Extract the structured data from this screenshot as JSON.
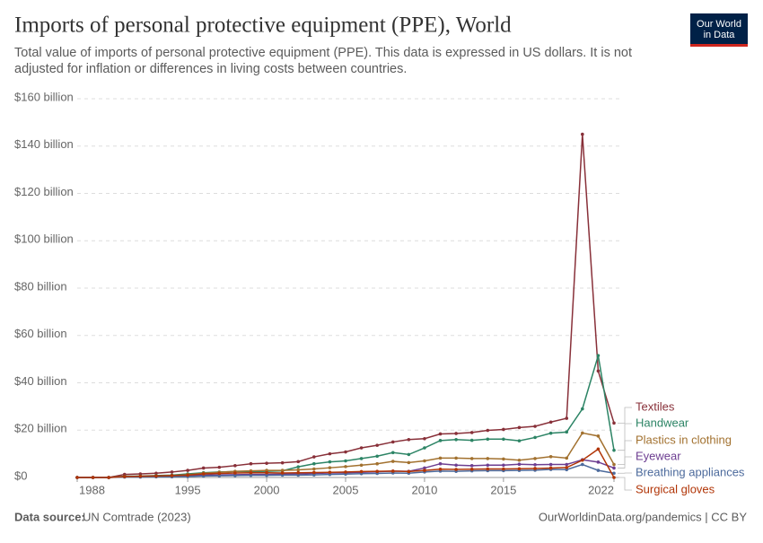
{
  "chart_data": {
    "type": "line",
    "title": "Imports of personal protective equipment (PPE), World",
    "subtitle": "Total value of imports of personal protective equipment (PPE). This data is expressed in US dollars. It is not adjusted for inflation or differences in living costs between countries.",
    "logo": [
      "Our World",
      "in Data"
    ],
    "source_label": "Data source:",
    "source": "UN Comtrade (2023)",
    "credit": "OurWorldinData.org/pandemics | CC BY",
    "x": [
      1988,
      1989,
      1990,
      1991,
      1992,
      1993,
      1994,
      1995,
      1996,
      1997,
      1998,
      1999,
      2000,
      2001,
      2002,
      2003,
      2004,
      2005,
      2006,
      2007,
      2008,
      2009,
      2010,
      2011,
      2012,
      2013,
      2014,
      2015,
      2016,
      2017,
      2018,
      2019,
      2020,
      2021,
      2022
    ],
    "xlim": [
      1988,
      2022
    ],
    "xticks": [
      1988,
      1995,
      2000,
      2005,
      2010,
      2015,
      2022
    ],
    "ylim": [
      0,
      160
    ],
    "yticks": [
      {
        "value": 0,
        "label": "$0"
      },
      {
        "value": 20,
        "label": "$20 billion"
      },
      {
        "value": 40,
        "label": "$40 billion"
      },
      {
        "value": 60,
        "label": "$60 billion"
      },
      {
        "value": 80,
        "label": "$80 billion"
      },
      {
        "value": 100,
        "label": "$100 billion"
      },
      {
        "value": 120,
        "label": "$120 billion"
      },
      {
        "value": 140,
        "label": "$140 billion"
      },
      {
        "value": 160,
        "label": "$160 billion"
      }
    ],
    "grid": true,
    "series": [
      {
        "name": "Textiles",
        "color": "#883039",
        "values": [
          0,
          0,
          0,
          1.3,
          1.5,
          1.8,
          2.3,
          3,
          4,
          4.3,
          5,
          5.8,
          6,
          6.2,
          6.7,
          8.7,
          10,
          10.8,
          12.5,
          13.6,
          15,
          16,
          16.4,
          18.4,
          18.6,
          19,
          19.9,
          20.3,
          21.1,
          21.6,
          23.4,
          25,
          145,
          45,
          23
        ]
      },
      {
        "name": "Handwear",
        "color": "#2c8465",
        "values": [
          0,
          0,
          0,
          0.5,
          0.6,
          0.8,
          1,
          1.5,
          2,
          2.3,
          2.5,
          2.5,
          2.6,
          2.8,
          4.5,
          5.8,
          6.6,
          7,
          8,
          9,
          10.5,
          9.7,
          12.5,
          15.6,
          16,
          15.7,
          16.2,
          16.2,
          15.5,
          16.9,
          18.7,
          19.2,
          29,
          51.5,
          11.5
        ]
      },
      {
        "name": "Plastics in clothing",
        "color": "#a2712f",
        "values": [
          0,
          0,
          0,
          0.4,
          0.5,
          0.6,
          0.8,
          1.2,
          1.8,
          2.2,
          2.6,
          2.8,
          3,
          3,
          3.2,
          3.6,
          4.1,
          4.6,
          5.2,
          5.8,
          6.8,
          6.3,
          7,
          8.2,
          8.2,
          8,
          8,
          7.8,
          7.3,
          8,
          8.8,
          8.2,
          18.8,
          17.5,
          5.5
        ]
      },
      {
        "name": "Eyewear",
        "color": "#6d3e91",
        "values": [
          0,
          0,
          0,
          0.3,
          0.3,
          0.4,
          0.5,
          0.7,
          1,
          1.1,
          1.2,
          1.3,
          1.3,
          1.4,
          1.5,
          1.7,
          1.9,
          2,
          2.2,
          2.4,
          2.7,
          2.6,
          4,
          5.8,
          5.2,
          5,
          5.2,
          5.2,
          5.6,
          5.4,
          5.5,
          5.5,
          7.5,
          6.5,
          4
        ]
      },
      {
        "name": "Breathing appliances",
        "color": "#4c6a9c",
        "values": [
          0,
          0,
          0,
          0.2,
          0.2,
          0.3,
          0.3,
          0.4,
          0.6,
          0.7,
          0.8,
          0.9,
          0.9,
          1,
          1,
          1.1,
          1.3,
          1.4,
          1.6,
          1.7,
          1.9,
          1.8,
          2.3,
          2.7,
          2.6,
          2.8,
          2.9,
          2.9,
          3,
          3.1,
          3.4,
          3.3,
          5.5,
          3,
          1.8
        ]
      },
      {
        "name": "Surgical gloves",
        "color": "#b13507",
        "values": [
          0,
          0,
          0,
          0.4,
          0.5,
          0.6,
          0.8,
          1,
          1.5,
          1.7,
          1.9,
          2,
          2,
          1.9,
          2,
          2.1,
          2.2,
          2.3,
          2.5,
          2.6,
          2.7,
          2.5,
          3,
          3.5,
          3.4,
          3.5,
          3.6,
          3.6,
          3.7,
          3.8,
          4,
          4.2,
          7.3,
          12,
          0
        ]
      }
    ]
  }
}
